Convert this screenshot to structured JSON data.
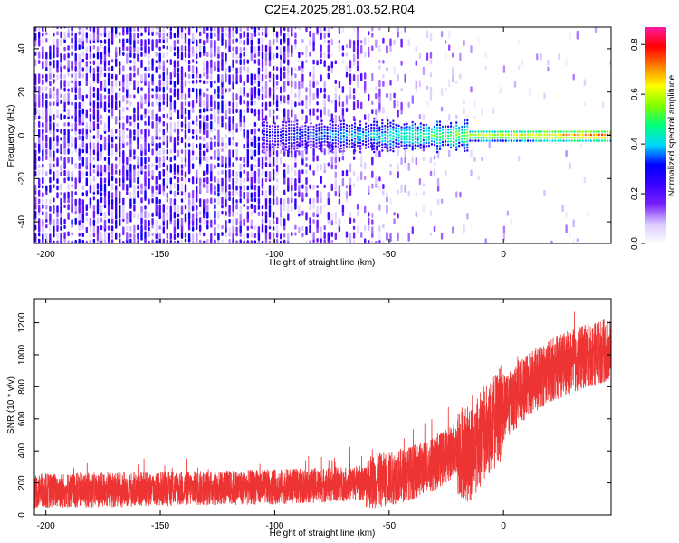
{
  "title": "C2E4.2025.281.03.52.R04",
  "chart_data": [
    {
      "type": "heatmap",
      "panel": "spectrogram",
      "xlabel": "Height of straight line (km)",
      "ylabel": "Frequency (Hz)",
      "xlim": [
        -205,
        47
      ],
      "ylim": [
        -50,
        50
      ],
      "xticks": [
        -200,
        -150,
        -100,
        -50,
        0
      ],
      "xtick_labels": [
        "-200",
        "-150",
        "-100",
        "-50",
        "0"
      ],
      "yticks": [
        -40,
        -20,
        0,
        20,
        40
      ],
      "ytick_labels": [
        "-40",
        "-20",
        "0",
        "20",
        "40"
      ],
      "colorbar": {
        "label": "Normalized spectral amplitude",
        "range": [
          0,
          0.87
        ],
        "ticks": [
          0.0,
          0.2,
          0.4,
          0.6,
          0.8
        ],
        "tick_labels": [
          "0.0",
          "0.2",
          "0.4",
          "0.6",
          "0.8"
        ],
        "colors": [
          "#ffffff",
          "#d9c8ff",
          "#7a1fff",
          "#3a00ff",
          "#0000ff",
          "#00d8ff",
          "#00ff7f",
          "#7fff00",
          "#ffff00",
          "#ff8000",
          "#ff0000",
          "#ff1aa0"
        ]
      },
      "description_values": {
        "noise_floor_amplitude": 0.12,
        "carrier_frequency_hz": 0,
        "carrier_appears_km": -105,
        "carrier_peak_amplitude": 0.85
      }
    },
    {
      "type": "line",
      "panel": "snr",
      "xlabel": "Height of straight line (km)",
      "ylabel": "SNR (10 * v/v)",
      "xlim": [
        -205,
        47
      ],
      "ylim": [
        0,
        1350
      ],
      "xticks": [
        -200,
        -150,
        -100,
        -50,
        0
      ],
      "xtick_labels": [
        "-200",
        "-150",
        "-100",
        "-50",
        "0"
      ],
      "yticks": [
        0,
        200,
        400,
        600,
        800,
        1000,
        1200
      ],
      "ytick_labels": [
        "0",
        "200",
        "400",
        "600",
        "800",
        "1000",
        "1200"
      ],
      "series": [
        {
          "name": "SNR",
          "color": "#ee3333",
          "x": [
            -205,
            -180,
            -160,
            -140,
            -120,
            -100,
            -80,
            -60,
            -50,
            -40,
            -30,
            -20,
            -15,
            -10,
            -5,
            0,
            10,
            20,
            30,
            40,
            47
          ],
          "y": [
            150,
            155,
            160,
            165,
            170,
            175,
            185,
            205,
            225,
            265,
            320,
            420,
            370,
            480,
            560,
            660,
            800,
            900,
            960,
            1010,
            1030
          ]
        }
      ]
    }
  ]
}
